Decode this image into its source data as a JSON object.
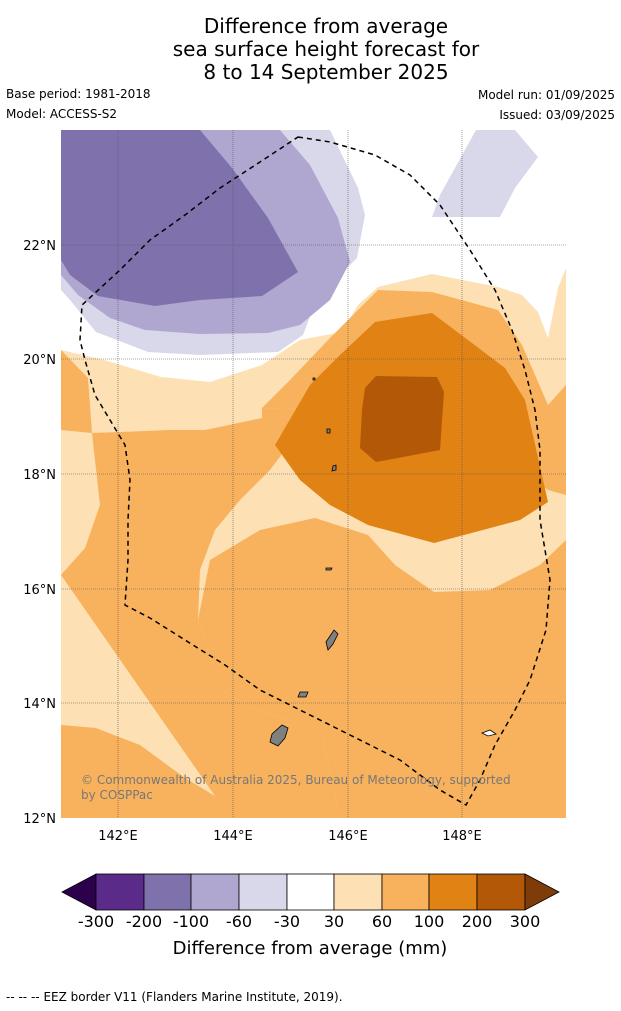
{
  "title": {
    "line1": "Difference from average",
    "line2": "sea surface height forecast for",
    "line3": "8 to 14 September 2025"
  },
  "meta": {
    "base_period": "Base period: 1981-2018",
    "model": "Model: ACCESS-S2",
    "model_run": "Model run: 01/09/2025",
    "issued": "Issued: 03/09/2025"
  },
  "map": {
    "lat_labels": [
      "22°N",
      "20°N",
      "18°N",
      "16°N",
      "14°N",
      "12°N"
    ],
    "lon_labels": [
      "142°E",
      "144°E",
      "146°E",
      "148°E"
    ],
    "copyright_line1": "© Commonwealth of Australia 2025, Bureau of Meteorology, supported",
    "copyright_line2": "by COSPPac",
    "colors": {
      "c_-300_-200": "#5a2b89",
      "c_-200_-100": "#7f72ac",
      "c_-100_-60": "#afa7cf",
      "c_-60_-30": "#d9d8ea",
      "c_-30_30": "#ffffff",
      "c_30_60": "#fde0b3",
      "c_60_100": "#f8b25e",
      "c_100_200": "#e08214",
      "c_200_300": "#b25806",
      "extend_low": "#2d004b",
      "extend_high": "#7f3b08",
      "land": "#808080"
    }
  },
  "colorbar": {
    "tick_labels": [
      "-300",
      "-200",
      "-100",
      "-60",
      "-30",
      "30",
      "60",
      "100",
      "200",
      "300"
    ],
    "label": "Difference from average (mm)"
  },
  "legend": {
    "eez_marker": "-- -- --",
    "eez_text": "EEZ border V11 (Flanders Marine Institute, 2019)."
  }
}
